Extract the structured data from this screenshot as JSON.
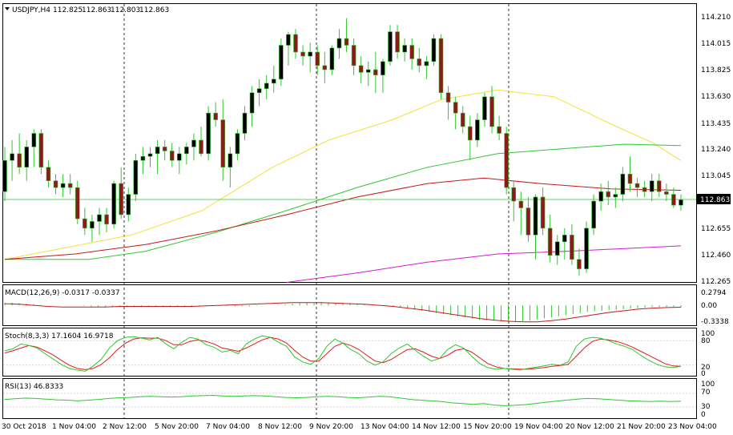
{
  "main_panel": {
    "symbol_label": "USDJPY,H4",
    "ohlc": [
      "112.825",
      "112.863",
      "112.803",
      "112.863"
    ],
    "price_axis": [
      "114.210",
      "114.015",
      "113.825",
      "113.630",
      "113.435",
      "113.240",
      "113.045",
      "112.850",
      "112.655",
      "112.460",
      "112.265"
    ],
    "current_price": "112.863"
  },
  "macd_panel": {
    "label": "MACD(12,26,9) -0.0317 -0.0337",
    "axis": [
      "0.2794",
      "0.00",
      "-0.3338"
    ]
  },
  "stoch_panel": {
    "label": "Stoch(8,3,3) 17.1604 16.9718",
    "axis": [
      "100",
      "80",
      "20",
      "0"
    ]
  },
  "rsi_panel": {
    "label": "RSI(13) 46.8333",
    "axis": [
      "100",
      "70",
      "30",
      "0"
    ]
  },
  "time_axis": [
    "30 Oct 2018",
    "1 Nov 04:00",
    "2 Nov 12:00",
    "5 Nov 20:00",
    "7 Nov 04:00",
    "8 Nov 12:00",
    "9 Nov 20:00",
    "13 Nov 04:00",
    "14 Nov 12:00",
    "15 Nov 20:00",
    "19 Nov 04:00",
    "20 Nov 12:00",
    "21 Nov 20:00",
    "23 Nov 04:00"
  ],
  "colors": {
    "bull": "#000000",
    "bear": "#8b1a1a",
    "wick": "#2fc72f",
    "ma_yellow": "#f2e03a",
    "ma_green": "#2fc72f",
    "ma_red": "#c11a1a",
    "ma_magenta": "#d11ad1",
    "macd_hist": "#2fc72f",
    "macd_signal": "#c11a1a",
    "stoch_main": "#2fc72f",
    "stoch_signal": "#e01a1a",
    "rsi": "#2fc72f"
  },
  "chart_data": {
    "type": "candlestick",
    "symbol": "USDJPY",
    "timeframe": "H4",
    "ylim": [
      112.265,
      114.21
    ],
    "candles": [
      [
        112.92,
        113.25,
        112.85,
        113.15
      ],
      [
        113.15,
        113.3,
        113.0,
        113.2
      ],
      [
        113.2,
        113.35,
        113.05,
        113.1
      ],
      [
        113.1,
        113.3,
        113.0,
        113.25
      ],
      [
        113.25,
        113.38,
        113.1,
        113.35
      ],
      [
        113.35,
        113.38,
        113.05,
        113.1
      ],
      [
        113.1,
        113.15,
        112.95,
        113.0
      ],
      [
        113.0,
        113.05,
        112.9,
        112.95
      ],
      [
        112.95,
        113.05,
        112.88,
        112.98
      ],
      [
        112.98,
        113.05,
        112.9,
        112.95
      ],
      [
        112.95,
        113.0,
        112.68,
        112.72
      ],
      [
        112.72,
        112.8,
        112.6,
        112.65
      ],
      [
        112.65,
        112.75,
        112.55,
        112.7
      ],
      [
        112.7,
        112.8,
        112.6,
        112.75
      ],
      [
        112.75,
        112.8,
        112.62,
        112.68
      ],
      [
        112.68,
        113.0,
        112.65,
        112.98
      ],
      [
        112.98,
        113.1,
        112.72,
        112.75
      ],
      [
        112.75,
        112.95,
        112.7,
        112.9
      ],
      [
        112.9,
        113.2,
        112.85,
        113.15
      ],
      [
        113.15,
        113.25,
        113.05,
        113.18
      ],
      [
        113.18,
        113.25,
        113.1,
        113.2
      ],
      [
        113.2,
        113.3,
        113.05,
        113.25
      ],
      [
        113.25,
        113.3,
        113.15,
        113.22
      ],
      [
        113.22,
        113.28,
        113.1,
        113.15
      ],
      [
        113.15,
        113.25,
        113.05,
        113.2
      ],
      [
        113.2,
        113.28,
        113.12,
        113.25
      ],
      [
        113.25,
        113.35,
        113.15,
        113.3
      ],
      [
        113.3,
        113.4,
        113.18,
        113.2
      ],
      [
        113.2,
        113.55,
        113.15,
        113.5
      ],
      [
        113.5,
        113.58,
        113.4,
        113.45
      ],
      [
        113.45,
        113.6,
        113.0,
        113.1
      ],
      [
        113.1,
        113.25,
        112.95,
        113.2
      ],
      [
        113.2,
        113.38,
        113.15,
        113.35
      ],
      [
        113.35,
        113.55,
        113.3,
        113.5
      ],
      [
        113.5,
        113.7,
        113.4,
        113.65
      ],
      [
        113.65,
        113.75,
        113.55,
        113.68
      ],
      [
        113.68,
        113.78,
        113.6,
        113.72
      ],
      [
        113.72,
        113.85,
        113.65,
        113.75
      ],
      [
        113.75,
        114.05,
        113.7,
        114.0
      ],
      [
        114.0,
        114.1,
        113.85,
        114.08
      ],
      [
        114.08,
        114.12,
        113.9,
        113.95
      ],
      [
        113.95,
        114.0,
        113.85,
        113.92
      ],
      [
        113.92,
        114.02,
        113.8,
        113.95
      ],
      [
        113.95,
        114.0,
        113.78,
        113.85
      ],
      [
        113.85,
        113.95,
        113.72,
        113.82
      ],
      [
        113.82,
        114.0,
        113.78,
        113.98
      ],
      [
        113.98,
        114.12,
        113.9,
        114.05
      ],
      [
        114.05,
        114.2,
        113.95,
        114.0
      ],
      [
        114.0,
        114.05,
        113.78,
        113.85
      ],
      [
        113.85,
        113.92,
        113.72,
        113.8
      ],
      [
        113.8,
        113.88,
        113.7,
        113.82
      ],
      [
        113.82,
        113.95,
        113.65,
        113.78
      ],
      [
        113.78,
        113.9,
        113.65,
        113.88
      ],
      [
        113.88,
        114.15,
        113.85,
        114.1
      ],
      [
        114.1,
        114.15,
        113.9,
        113.95
      ],
      [
        113.95,
        114.05,
        113.88,
        114.0
      ],
      [
        114.0,
        114.05,
        113.82,
        113.9
      ],
      [
        113.9,
        113.98,
        113.8,
        113.85
      ],
      [
        113.85,
        113.92,
        113.75,
        113.88
      ],
      [
        113.88,
        114.08,
        113.85,
        114.05
      ],
      [
        114.05,
        114.08,
        113.6,
        113.65
      ],
      [
        113.65,
        113.7,
        113.45,
        113.58
      ],
      [
        113.58,
        113.62,
        113.38,
        113.5
      ],
      [
        113.5,
        113.55,
        113.35,
        113.4
      ],
      [
        113.4,
        113.48,
        113.15,
        113.3
      ],
      [
        113.3,
        113.5,
        113.25,
        113.45
      ],
      [
        113.45,
        113.65,
        113.4,
        113.62
      ],
      [
        113.62,
        113.7,
        113.35,
        113.4
      ],
      [
        113.4,
        113.48,
        113.3,
        113.35
      ],
      [
        113.35,
        113.4,
        112.9,
        112.95
      ],
      [
        112.95,
        113.0,
        112.7,
        112.85
      ],
      [
        112.85,
        112.92,
        112.6,
        112.8
      ],
      [
        112.8,
        112.88,
        112.55,
        112.6
      ],
      [
        112.6,
        112.9,
        112.42,
        112.88
      ],
      [
        112.88,
        112.95,
        112.6,
        112.65
      ],
      [
        112.65,
        112.75,
        112.4,
        112.45
      ],
      [
        112.45,
        112.6,
        112.38,
        112.55
      ],
      [
        112.55,
        112.65,
        112.42,
        112.6
      ],
      [
        112.6,
        112.68,
        112.38,
        112.42
      ],
      [
        112.42,
        112.5,
        112.3,
        112.35
      ],
      [
        112.35,
        112.7,
        112.32,
        112.65
      ],
      [
        112.65,
        112.9,
        112.6,
        112.85
      ],
      [
        112.85,
        112.98,
        112.78,
        112.92
      ],
      [
        112.92,
        113.0,
        112.82,
        112.88
      ],
      [
        112.88,
        112.95,
        112.8,
        112.9
      ],
      [
        112.9,
        113.1,
        112.85,
        113.05
      ],
      [
        113.05,
        113.18,
        112.92,
        112.98
      ],
      [
        112.98,
        113.02,
        112.88,
        112.95
      ],
      [
        112.95,
        113.0,
        112.88,
        112.92
      ],
      [
        112.92,
        113.05,
        112.85,
        113.0
      ],
      [
        113.0,
        113.05,
        112.88,
        112.92
      ],
      [
        112.92,
        112.98,
        112.85,
        112.9
      ],
      [
        112.9,
        112.95,
        112.8,
        112.82
      ],
      [
        112.82,
        112.9,
        112.78,
        112.86
      ]
    ],
    "moving_averages": [
      {
        "color": "ma_yellow",
        "points": [
          [
            0,
            112.42
          ],
          [
            8,
            112.5
          ],
          [
            18,
            112.6
          ],
          [
            28,
            112.78
          ],
          [
            38,
            113.1
          ],
          [
            46,
            113.3
          ],
          [
            55,
            113.45
          ],
          [
            62,
            113.6
          ],
          [
            70,
            113.67
          ],
          [
            78,
            113.62
          ],
          [
            86,
            113.42
          ],
          [
            92,
            113.28
          ],
          [
            96,
            113.15
          ]
        ]
      },
      {
        "color": "ma_green",
        "points": [
          [
            0,
            112.42
          ],
          [
            12,
            112.42
          ],
          [
            20,
            112.48
          ],
          [
            30,
            112.62
          ],
          [
            40,
            112.78
          ],
          [
            50,
            112.95
          ],
          [
            60,
            113.1
          ],
          [
            70,
            113.2
          ],
          [
            80,
            113.24
          ],
          [
            88,
            113.27
          ],
          [
            96,
            113.26
          ]
        ]
      },
      {
        "color": "ma_red",
        "points": [
          [
            0,
            112.42
          ],
          [
            10,
            112.46
          ],
          [
            20,
            112.53
          ],
          [
            30,
            112.63
          ],
          [
            40,
            112.75
          ],
          [
            50,
            112.88
          ],
          [
            60,
            112.98
          ],
          [
            68,
            113.02
          ],
          [
            76,
            112.98
          ],
          [
            86,
            112.94
          ],
          [
            96,
            112.93
          ]
        ]
      },
      {
        "color": "ma_magenta",
        "points": [
          [
            40,
            112.25
          ],
          [
            50,
            112.32
          ],
          [
            60,
            112.4
          ],
          [
            70,
            112.46
          ],
          [
            80,
            112.48
          ],
          [
            96,
            112.52
          ]
        ]
      }
    ],
    "macd": {
      "ylim": [
        -0.3338,
        0.2794
      ],
      "hist": [
        0.05,
        0.05,
        0.04,
        0.03,
        0.02,
        0.01,
        0.0,
        0.0,
        0.0,
        0.0,
        0.0,
        -0.01,
        -0.02,
        -0.03,
        -0.03,
        -0.03,
        -0.03,
        -0.03,
        -0.03,
        -0.03,
        -0.02,
        -0.02,
        -0.02,
        -0.02,
        -0.02,
        -0.02,
        -0.02,
        -0.02,
        -0.02,
        -0.01,
        -0.01,
        -0.01,
        -0.02,
        -0.02,
        -0.02,
        -0.01,
        0.0,
        0.0,
        0.01,
        0.02,
        0.03,
        0.04,
        0.05,
        0.05,
        0.05,
        0.05,
        0.05,
        0.05,
        0.04,
        0.03,
        0.02,
        0.01,
        0.0,
        -0.01,
        -0.02,
        -0.03,
        -0.05,
        -0.08,
        -0.1,
        -0.12,
        -0.14,
        -0.16,
        -0.18,
        -0.2,
        -0.22,
        -0.24,
        -0.26,
        -0.27,
        -0.28,
        -0.29,
        -0.3,
        -0.3,
        -0.29,
        -0.28,
        -0.26,
        -0.24,
        -0.22,
        -0.2,
        -0.18,
        -0.16,
        -0.14,
        -0.12,
        -0.11,
        -0.1,
        -0.09,
        -0.08,
        -0.07,
        -0.06,
        -0.05,
        -0.04,
        -0.03,
        -0.03,
        -0.03,
        -0.03,
        -0.03
      ],
      "signal": [
        0.03,
        0.02,
        0.0,
        -0.02,
        -0.03,
        -0.03,
        -0.03,
        -0.03,
        -0.02,
        -0.02,
        -0.02,
        -0.02,
        -0.02,
        -0.02,
        -0.01,
        0.0,
        0.01,
        0.02,
        0.03,
        0.04,
        0.05,
        0.05,
        0.05,
        0.04,
        0.03,
        0.02,
        0.0,
        -0.02,
        -0.05,
        -0.08,
        -0.12,
        -0.16,
        -0.2,
        -0.24,
        -0.27,
        -0.29,
        -0.3,
        -0.3,
        -0.28,
        -0.25,
        -0.21,
        -0.17,
        -0.13,
        -0.1,
        -0.07,
        -0.05,
        -0.04,
        -0.034
      ]
    },
    "stochastic": {
      "ylim": [
        0,
        100
      ],
      "main": [
        55,
        60,
        72,
        68,
        62,
        48,
        35,
        22,
        12,
        8,
        5,
        18,
        35,
        62,
        80,
        88,
        90,
        86,
        82,
        88,
        72,
        60,
        76,
        88,
        84,
        70,
        64,
        52,
        56,
        48,
        72,
        84,
        92,
        88,
        76,
        66,
        40,
        28,
        22,
        36,
        66,
        84,
        74,
        58,
        48,
        30,
        20,
        28,
        48,
        62,
        72,
        56,
        42,
        30,
        36,
        58,
        70,
        62,
        42,
        24,
        14,
        10,
        12,
        10,
        8,
        12,
        15,
        18,
        22,
        20,
        28,
        66,
        84,
        88,
        86,
        80,
        72,
        66,
        58,
        44,
        32,
        22,
        16,
        14,
        17
      ],
      "signal": [
        50,
        55,
        62,
        68,
        64,
        55,
        45,
        32,
        20,
        12,
        9,
        12,
        22,
        38,
        58,
        74,
        84,
        87,
        86,
        86,
        80,
        70,
        70,
        78,
        82,
        78,
        72,
        62,
        58,
        54,
        62,
        72,
        82,
        88,
        84,
        74,
        56,
        40,
        30,
        30,
        48,
        66,
        74,
        68,
        58,
        44,
        30,
        26,
        34,
        46,
        58,
        60,
        52,
        42,
        36,
        44,
        56,
        60,
        52,
        38,
        24,
        16,
        12,
        11,
        10,
        10,
        12,
        14,
        17,
        19,
        22,
        42,
        62,
        78,
        84,
        82,
        78,
        72,
        64,
        54,
        44,
        34,
        24,
        18,
        17
      ]
    },
    "rsi": {
      "ylim": [
        0,
        100
      ],
      "values": [
        52,
        54,
        56,
        55,
        53,
        51,
        50,
        48,
        50,
        52,
        55,
        57,
        58,
        60,
        61,
        60,
        59,
        60,
        62,
        63,
        64,
        62,
        61,
        62,
        63,
        62,
        60,
        58,
        57,
        58,
        60,
        61,
        60,
        58,
        57,
        59,
        61,
        60,
        56,
        52,
        50,
        48,
        46,
        42,
        40,
        38,
        40,
        36,
        34,
        35,
        37,
        40,
        44,
        47,
        50,
        53,
        55,
        54,
        52,
        50,
        48,
        47,
        46,
        47,
        46,
        47
      ]
    }
  }
}
